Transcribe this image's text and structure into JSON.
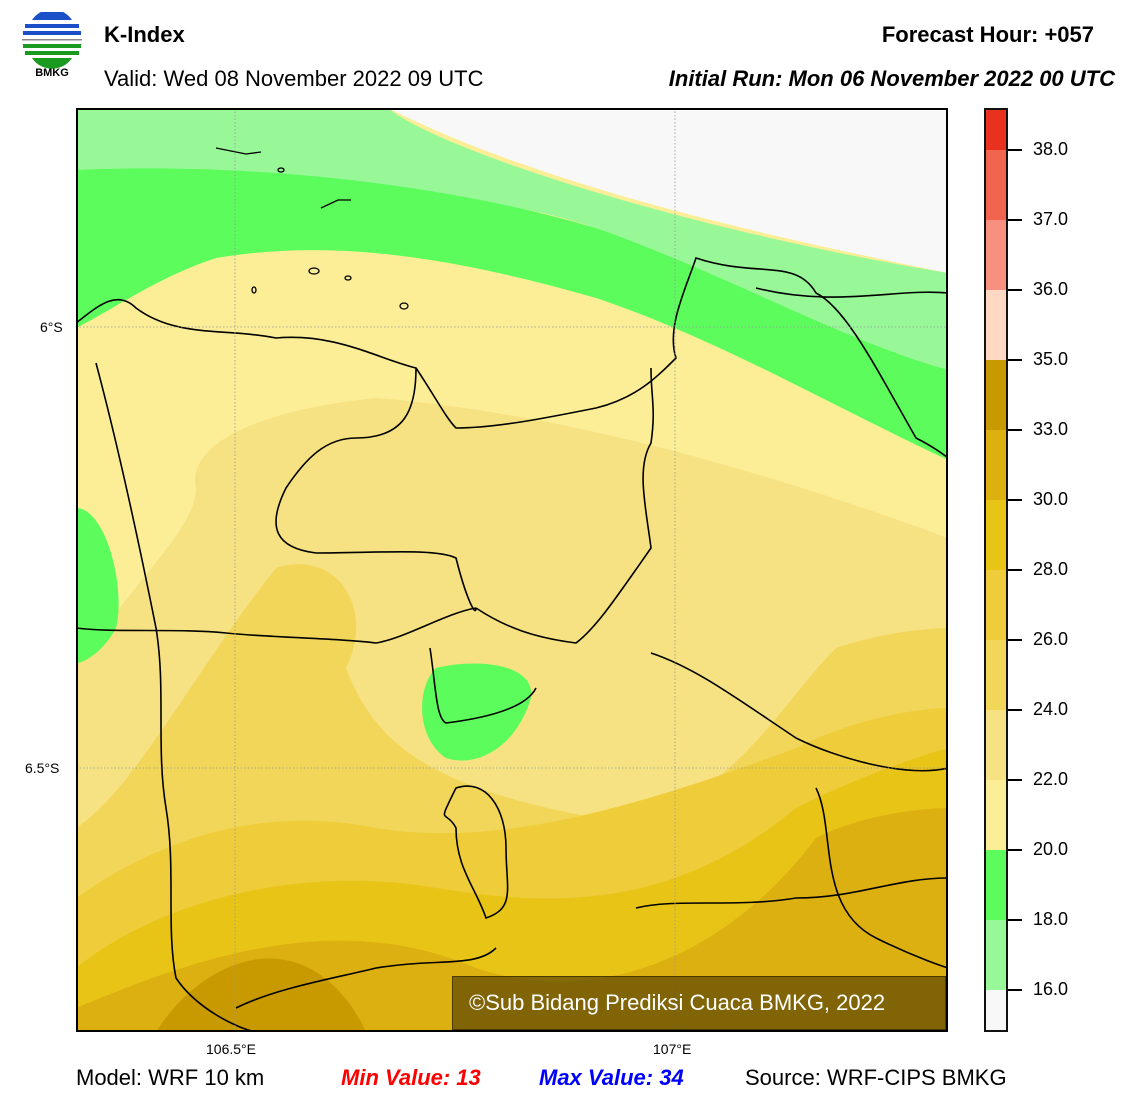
{
  "header": {
    "logo_text": "BMKG",
    "title": "K-Index",
    "valid": "Valid: Wed 08 November 2022 09 UTC",
    "forecast_hour": "Forecast Hour: +057",
    "initial_run": "Initial Run: Mon 06 November 2022 00 UTC"
  },
  "map": {
    "lat_labels": [
      "6°S",
      "6.5°S"
    ],
    "lon_labels": [
      "106.5°E",
      "107°E"
    ],
    "copyright": "©Sub Bidang Prediksi Cuaca BMKG, 2022"
  },
  "colorbar": {
    "ticks": [
      "38.0",
      "37.0",
      "36.0",
      "35.0",
      "33.0",
      "30.0",
      "28.0",
      "26.0",
      "24.0",
      "22.0",
      "20.0",
      "18.0",
      "16.0"
    ],
    "colors": [
      "#e8321f",
      "#f06450",
      "#f89080",
      "#ffd8c4",
      "#c99a00",
      "#dcb010",
      "#e8c416",
      "#eecc3a",
      "#f2d65a",
      "#f6e282",
      "#fcee96",
      "#5cfc5c",
      "#98f898",
      "#f8f8f8"
    ]
  },
  "footer": {
    "model": "Model: WRF 10 km",
    "min": "Min Value: 13",
    "max": "Max Value: 34",
    "source": "Source: WRF-CIPS BMKG"
  }
}
